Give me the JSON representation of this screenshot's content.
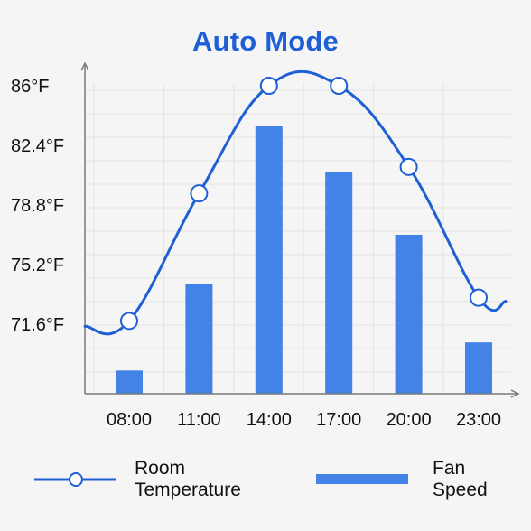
{
  "chart_data": {
    "type": "bar+line",
    "title": "Auto Mode",
    "categories": [
      "08:00",
      "11:00",
      "14:00",
      "17:00",
      "20:00",
      "23:00"
    ],
    "y_ticks": [
      "86°F",
      "82.4°F",
      "78.8°F",
      "75.2°F",
      "71.6°F"
    ],
    "y_tick_values": [
      86,
      82.4,
      78.8,
      75.2,
      71.6
    ],
    "ylim": [
      67.4,
      86.6
    ],
    "series": [
      {
        "name": "Room Temperature",
        "kind": "line",
        "values": [
          71.8,
          79.5,
          86.0,
          86.0,
          81.1,
          73.2
        ]
      },
      {
        "name": "Fan Speed",
        "kind": "bar",
        "values": [
          68.8,
          74.0,
          83.6,
          80.8,
          77.0,
          70.5
        ]
      }
    ],
    "grid": true,
    "legend": "bottom",
    "colors": {
      "line": "#1f5fd6",
      "bar": "#4382e6",
      "grid": "#e4e4e4",
      "axis": "#7a7a7a",
      "title": "#1f5fd6"
    }
  },
  "legend": {
    "items": [
      {
        "label_line1": "Room",
        "label_line2": "Temperature"
      },
      {
        "label_line1": "Fan",
        "label_line2": "Speed"
      }
    ]
  }
}
